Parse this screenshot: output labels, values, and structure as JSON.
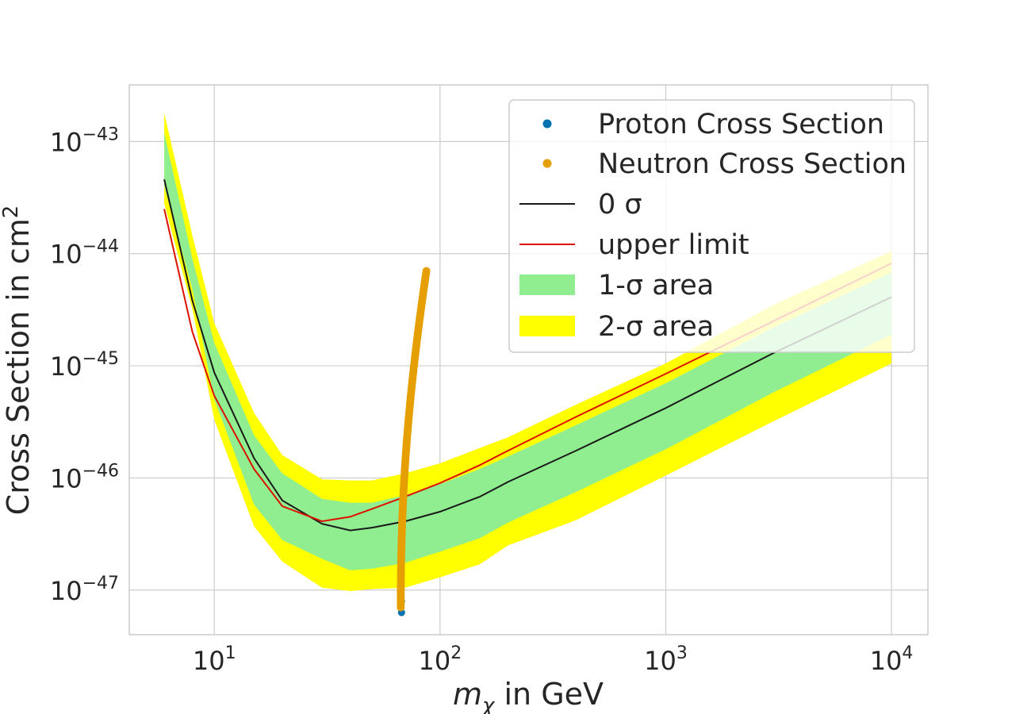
{
  "chart_data": {
    "type": "line",
    "title": "",
    "xscale": "log",
    "yscale": "log",
    "xlim": [
      4.2,
      14500
    ],
    "ylim": [
      4e-48,
      3.2e-43
    ],
    "xlabel_main": "m",
    "xlabel_sub": "χ",
    "xlabel_tail": " in GeV",
    "ylabel_main": "Cross Section in cm",
    "ylabel_sup": "2",
    "grid": true,
    "legend_position": "upper-right",
    "x_ticks": [
      {
        "value": 10,
        "base": "10",
        "exp": "1"
      },
      {
        "value": 100,
        "base": "10",
        "exp": "2"
      },
      {
        "value": 1000,
        "base": "10",
        "exp": "3"
      },
      {
        "value": 10000,
        "base": "10",
        "exp": "4"
      }
    ],
    "y_ticks": [
      {
        "value": 1e-43,
        "base": "10",
        "exp": "−43"
      },
      {
        "value": 1e-44,
        "base": "10",
        "exp": "−44"
      },
      {
        "value": 1e-45,
        "base": "10",
        "exp": "−45"
      },
      {
        "value": 1e-46,
        "base": "10",
        "exp": "−46"
      },
      {
        "value": 1e-47,
        "base": "10",
        "exp": "−47"
      }
    ],
    "mass": [
      6,
      8,
      10,
      15,
      20,
      30,
      40,
      50,
      70,
      100,
      150,
      200,
      400,
      1000,
      3000,
      10000
    ],
    "series": [
      {
        "name": "0 σ",
        "color": "#1a1a1a",
        "values": [
          4.6e-44,
          3.8e-45,
          8.7e-46,
          1.5e-46,
          6.3e-47,
          3.9e-47,
          3.4e-47,
          3.6e-47,
          4.1e-47,
          5e-47,
          6.8e-47,
          9.2e-47,
          1.75e-46,
          4.2e-46,
          1.3e-45,
          4.1e-45
        ]
      },
      {
        "name": "upper limit",
        "color": "#dd1100",
        "values": [
          2.5e-44,
          2e-45,
          5.4e-46,
          1.2e-46,
          5.6e-47,
          4.1e-47,
          4.5e-47,
          5.3e-47,
          6.8e-47,
          9e-47,
          1.3e-46,
          1.75e-46,
          3.5e-46,
          8.5e-46,
          2.5e-45,
          8.2e-45
        ]
      }
    ],
    "bands": [
      {
        "name": "2-σ area",
        "color": "#ffff00",
        "lower": [
          2.8e-44,
          3.2e-45,
          3.3e-46,
          3.7e-47,
          1.8e-47,
          1.05e-47,
          9.8e-48,
          1.02e-47,
          1.05e-47,
          1.3e-47,
          1.7e-47,
          2.5e-47,
          4.2e-47,
          1.05e-46,
          3.2e-46,
          1.05e-45
        ],
        "upper": [
          1.8e-43,
          1.45e-44,
          2.4e-45,
          3.8e-46,
          1.6e-46,
          9.7e-47,
          9.5e-47,
          9.5e-47,
          1.1e-46,
          1.35e-46,
          1.85e-46,
          2.3e-46,
          4.5e-46,
          1.05e-45,
          3.5e-45,
          1.05e-44
        ]
      },
      {
        "name": "1-σ area",
        "color": "#90ee90",
        "lower": [
          4e-44,
          4.8e-45,
          5e-46,
          5.8e-47,
          2.8e-47,
          1.9e-47,
          1.5e-47,
          1.55e-47,
          1.75e-47,
          2.2e-47,
          2.9e-47,
          4e-47,
          7.5e-47,
          1.8e-46,
          5.8e-46,
          1.9e-45
        ],
        "upper": [
          1.2e-43,
          9e-45,
          1.6e-45,
          2.4e-46,
          1.1e-46,
          6.5e-47,
          6e-47,
          6e-47,
          7e-47,
          8.8e-47,
          1.2e-46,
          1.55e-46,
          2.95e-46,
          7e-46,
          2.2e-45,
          6.8e-45
        ]
      }
    ],
    "scatter": [
      {
        "name": "Proton Cross Section",
        "color": "#0072b2",
        "points": [
          {
            "x": 67.5,
            "y": 6.3e-48
          },
          {
            "x": 67.5,
            "y": 8e-48
          }
        ]
      },
      {
        "name": "Neutron Cross Section",
        "color": "#e69f00",
        "x_range": [
          67,
          87
        ],
        "y_range": [
          7e-48,
          7e-45
        ]
      }
    ],
    "legend": [
      {
        "label": "Proton Cross Section",
        "kind": "marker",
        "color": "#0072b2"
      },
      {
        "label": "Neutron Cross Section",
        "kind": "marker",
        "color": "#e69f00"
      },
      {
        "label": "0 σ",
        "kind": "line",
        "color": "#1a1a1a"
      },
      {
        "label": "upper limit",
        "kind": "line",
        "color": "#dd1100"
      },
      {
        "label": "1-σ area",
        "kind": "patch",
        "color": "#90ee90"
      },
      {
        "label": "2-σ area",
        "kind": "patch",
        "color": "#ffff00"
      }
    ]
  }
}
